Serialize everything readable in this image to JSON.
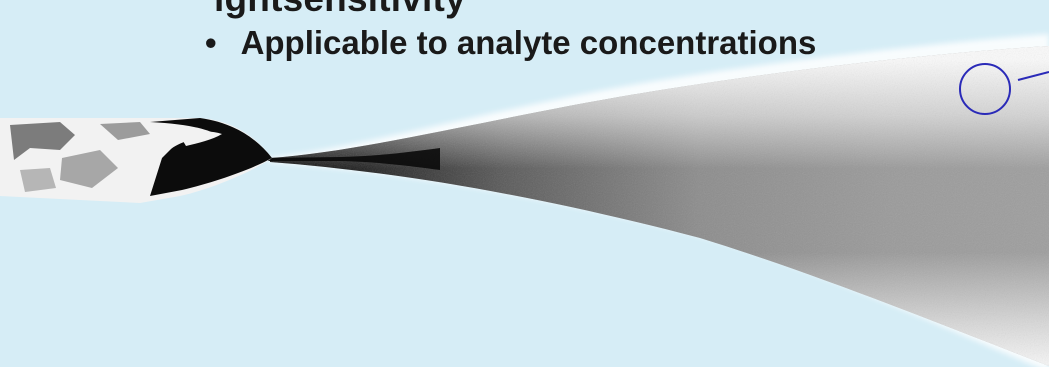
{
  "slide": {
    "heading_partial": "ightsensitivity",
    "bullet_marker": "•",
    "bullet_text": "Applicable to analyte concentrations"
  },
  "figure": {
    "content": "Spray plume emerging from emitter tip with a small circled callout at upper right",
    "colors": {
      "background": "#d6edf6",
      "plume_dark": "#1a1a1a",
      "plume_light": "#ffffff",
      "callout": "#2a2ab8"
    }
  }
}
